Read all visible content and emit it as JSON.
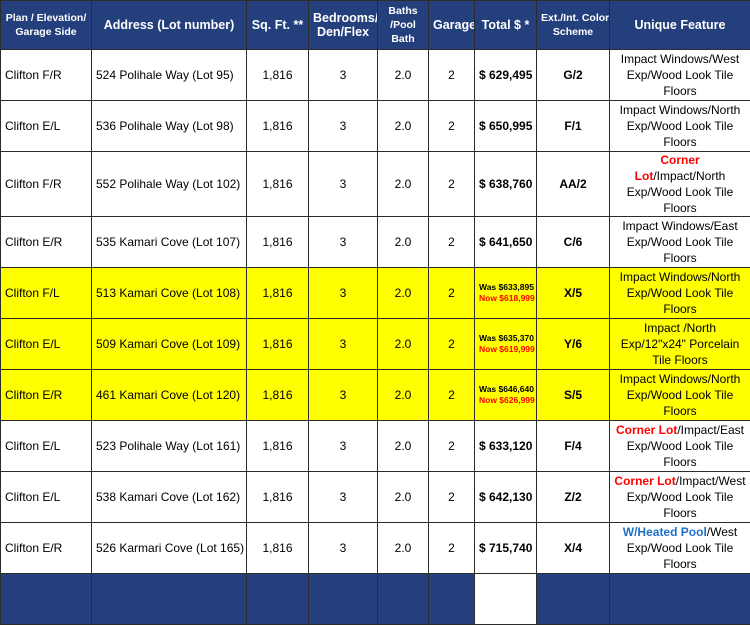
{
  "headers": {
    "plan": [
      "Plan / Elevation/",
      "Garage Side"
    ],
    "address": "Address (Lot number)",
    "sqft": "Sq. Ft. **",
    "bedrooms": [
      "Bedrooms/",
      "Den/Flex"
    ],
    "baths": [
      "Baths",
      "/Pool",
      "Bath"
    ],
    "garage": "Garage",
    "total": "Total $ *",
    "color": [
      "Ext./Int. Color",
      "Scheme"
    ],
    "feature": "Unique Feature"
  },
  "rows": [
    {
      "plan": "Clifton F/R",
      "address": "524 Polihale Way (Lot 95)",
      "sqft": "1,816",
      "bedrooms": "3",
      "baths": "2.0",
      "garage": "2",
      "total": "$ 629,495",
      "color": "G/2",
      "feature_tag": "",
      "feature_text": "Impact Windows/West Exp/Wood Look Tile Floors"
    },
    {
      "plan": "Clifton E/L",
      "address": "536 Polihale Way (Lot 98)",
      "sqft": "1,816",
      "bedrooms": "3",
      "baths": "2.0",
      "garage": "2",
      "total": "$ 650,995",
      "color": "F/1",
      "feature_tag": "",
      "feature_text": "Impact Windows/North Exp/Wood Look Tile Floors"
    },
    {
      "plan": "Clifton F/R",
      "address": "552 Polihale Way (Lot 102)",
      "sqft": "1,816",
      "bedrooms": "3",
      "baths": "2.0",
      "garage": "2",
      "total": "$ 638,760",
      "color": "AA/2",
      "feature_tag": "Corner Lot",
      "feature_text": "/Impact/North Exp/Wood Look Tile Floors"
    },
    {
      "plan": "Clifton E/R",
      "address": "535 Kamari Cove (Lot 107)",
      "sqft": "1,816",
      "bedrooms": "3",
      "baths": "2.0",
      "garage": "2",
      "total": "$ 641,650",
      "color": "C/6",
      "feature_tag": "",
      "feature_text": "Impact Windows/East Exp/Wood Look Tile Floors"
    },
    {
      "plan": "Clifton F/L",
      "address": "513 Kamari Cove (Lot 108)",
      "sqft": "1,816",
      "bedrooms": "3",
      "baths": "2.0",
      "garage": "2",
      "was": "Was $633,895",
      "now": "Now $618,999",
      "color": "X/5",
      "feature_tag": "",
      "feature_text": "Impact Windows/North Exp/Wood Look Tile Floors"
    },
    {
      "plan": "Clifton E/L",
      "address": "509 Kamari Cove (Lot 109)",
      "sqft": "1,816",
      "bedrooms": "3",
      "baths": "2.0",
      "garage": "2",
      "was": "Was $635,370",
      "now": "Now $619,999",
      "color": "Y/6",
      "feature_tag": "",
      "feature_text": "Impact /North Exp/12\"x24\" Porcelain Tile Floors"
    },
    {
      "plan": "Clifton E/R",
      "address": "461 Kamari Cove (Lot 120)",
      "sqft": "1,816",
      "bedrooms": "3",
      "baths": "2.0",
      "garage": "2",
      "was": "Was $646,640",
      "now": "Now $626,999",
      "color": "S/5",
      "feature_tag": "",
      "feature_text": "Impact Windows/North Exp/Wood Look Tile Floors"
    },
    {
      "plan": "Clifton E/L",
      "address": "523 Polihale Way (Lot 161)",
      "sqft": "1,816",
      "bedrooms": "3",
      "baths": "2.0",
      "garage": "2",
      "total": "$ 633,120",
      "color": "F/4",
      "feature_tag": "Corner Lot",
      "feature_text": "/Impact/East Exp/Wood Look Tile Floors"
    },
    {
      "plan": "Clifton E/L",
      "address": "538 Kamari Cove (Lot 162)",
      "sqft": "1,816",
      "bedrooms": "3",
      "baths": "2.0",
      "garage": "2",
      "total": "$ 642,130",
      "color": "Z/2",
      "feature_tag": "Corner Lot",
      "feature_text": "/Impact/West Exp/Wood Look Tile Floors"
    },
    {
      "plan": "Clifton E/R",
      "address": "526 Karmari Cove (Lot 165)",
      "sqft": "1,816",
      "bedrooms": "3",
      "baths": "2.0",
      "garage": "2",
      "total": "$ 715,740",
      "color": "X/4",
      "feature_tag": "W/Heated Pool",
      "feature_tag_style": "blue",
      "feature_text": "/West Exp/Wood Look Tile Floors"
    }
  ],
  "colors": {
    "header_bg": "#233f7c",
    "highlight": "#ffff00",
    "sale_red": "#ff0000",
    "pool_blue": "#1f6fc6"
  }
}
